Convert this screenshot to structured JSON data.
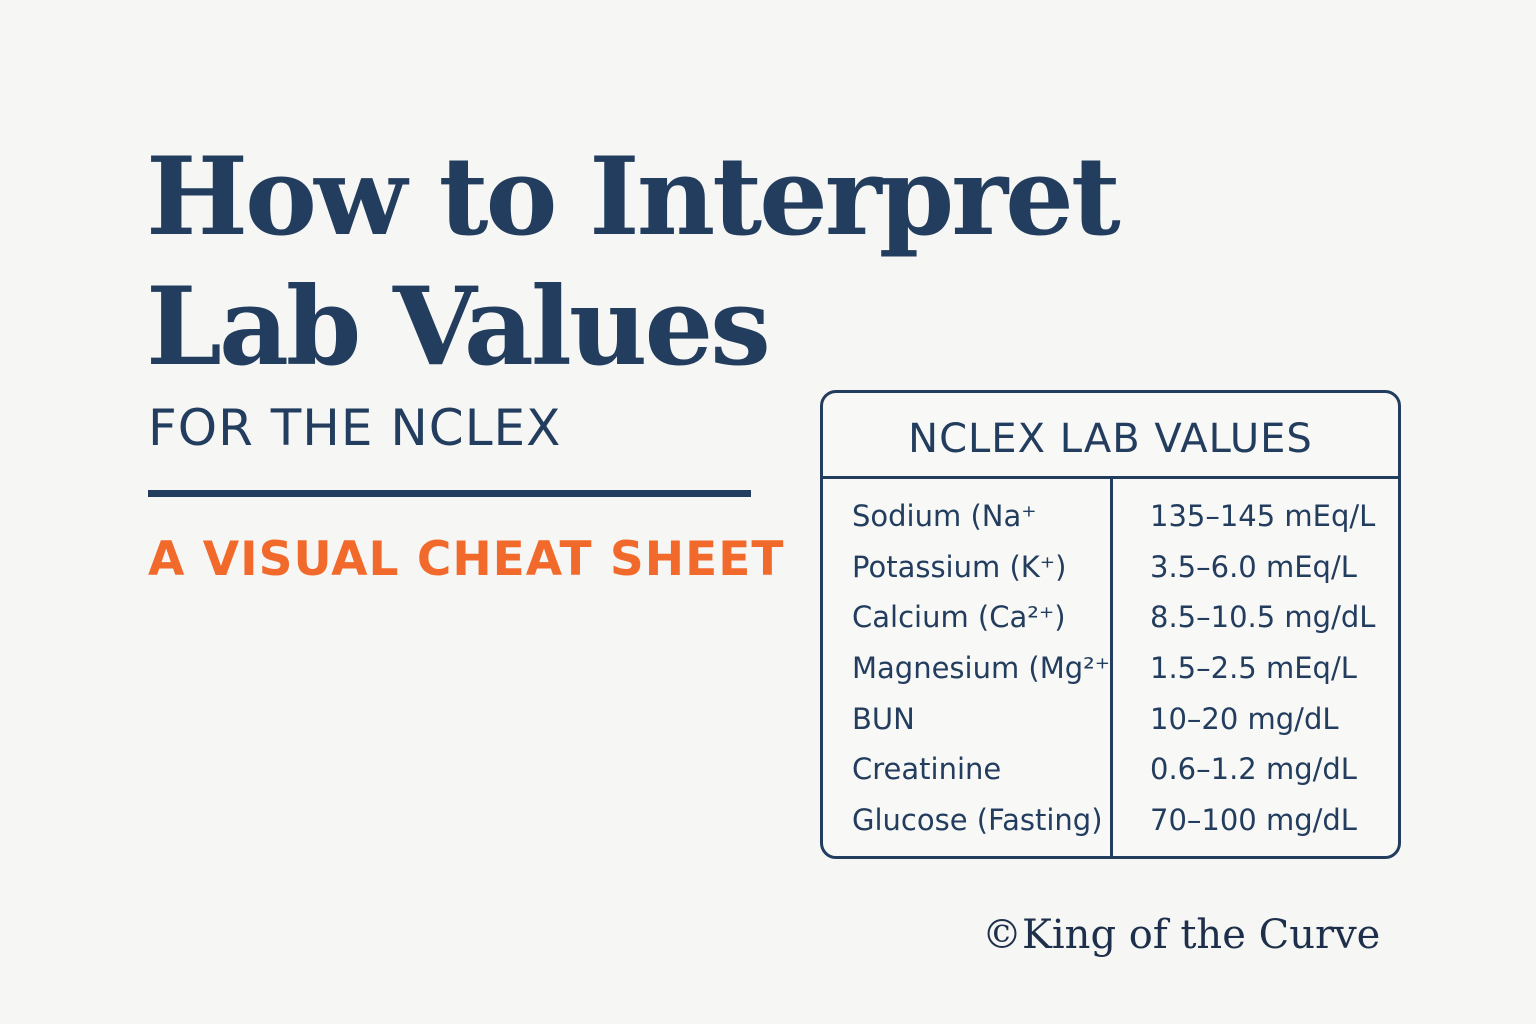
{
  "heading": {
    "line1": "How to Interpret",
    "line2": "Lab Values",
    "subtitle": "FOR THE NCLEX",
    "tagline": "A VISUAL CHEAT SHEET"
  },
  "table": {
    "title": "NCLEX LAB VALUES",
    "rows": [
      {
        "name": "Sodium (Na⁺",
        "range": "135–145 mEq/L"
      },
      {
        "name": "Potassium (K⁺)",
        "range": "3.5–6.0 mEq/L"
      },
      {
        "name": "Calcium (Ca²⁺)",
        "range": "8.5–10.5 mg/dL"
      },
      {
        "name": "Magnesium (Mg²⁺",
        "range": "1.5–2.5 mEq/L"
      },
      {
        "name": "BUN",
        "range": "10–20 mg/dL"
      },
      {
        "name": "Creatinine",
        "range": "0.6–1.2 mg/dL"
      },
      {
        "name": "Glucose (Fasting)",
        "range": "70–100 mg/dL"
      }
    ]
  },
  "credit": "©King of the Curve",
  "colors": {
    "navy": "#233d5e",
    "orange": "#f26a2b",
    "background": "#f6f6f4"
  }
}
